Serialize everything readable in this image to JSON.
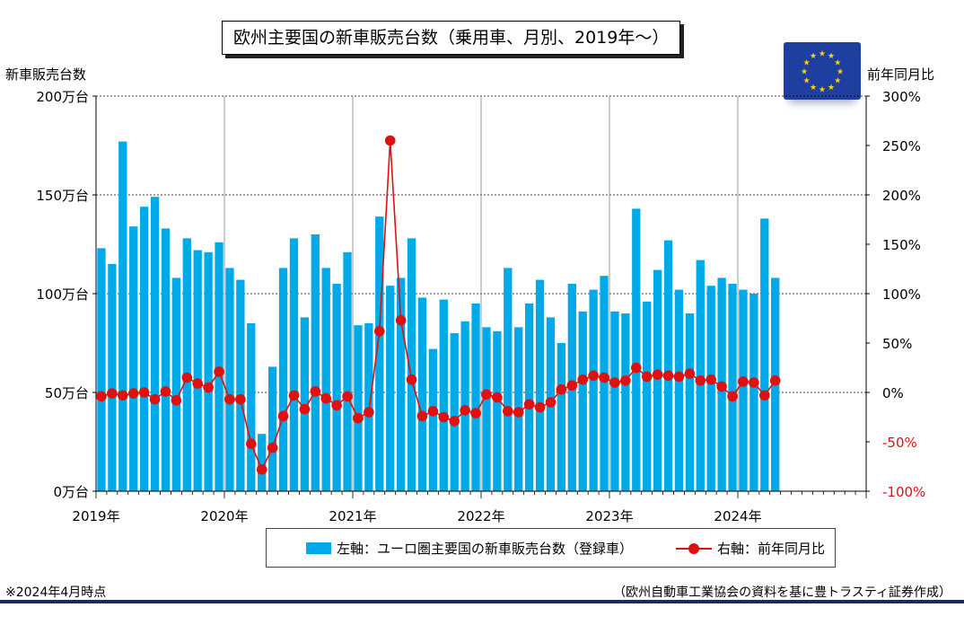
{
  "title": "欧州主要国の新車販売台数（乗用車、月別、2019年～）",
  "left_axis_title": "新車販売台数",
  "right_axis_title": "前年同月比",
  "legend": {
    "bar_label": "左軸：ユーロ圏主要国の新車販売台数（登録車）",
    "line_label": "右軸：前年同月比"
  },
  "note": "※2024年4月時点",
  "source": "（欧州自動車工業協会の資料を基に豊トラスティ証券作成）",
  "colors": {
    "bar": "#00a9e8",
    "line": "#e01010",
    "negative_tick": "#e01010",
    "rule": "#1b2a5c",
    "flag": "#1f3fa0",
    "star": "#ffd400"
  },
  "icons": {
    "flag": "eu-flag-icon"
  },
  "chart_data": {
    "type": "bar",
    "left_axis": {
      "ylim": [
        0,
        200
      ],
      "ticks": [
        0,
        50,
        100,
        150,
        200
      ],
      "tick_labels": [
        "0万台",
        "50万台",
        "100万台",
        "150万台",
        "200万台"
      ]
    },
    "right_axis": {
      "ylim": [
        -100,
        300
      ],
      "ticks": [
        -100,
        -50,
        0,
        50,
        100,
        150,
        200,
        250,
        300
      ],
      "tick_labels": [
        "-100%",
        "-50%",
        "0%",
        "50%",
        "100%",
        "150%",
        "200%",
        "250%",
        "300%"
      ]
    },
    "x_labels": [
      "2019年",
      "2020年",
      "2021年",
      "2022年",
      "2023年",
      "2024年"
    ],
    "x_slots": 72,
    "grid": true,
    "legend_position": "bottom",
    "series": [
      {
        "name": "左軸：ユーロ圏主要国の新車販売台数（登録車）",
        "type": "bar",
        "axis": "left",
        "values": [
          123,
          115,
          177,
          134,
          144,
          149,
          133,
          108,
          128,
          122,
          121,
          126,
          113,
          107,
          85,
          29,
          63,
          113,
          128,
          88,
          130,
          113,
          105,
          121,
          84,
          85,
          139,
          104,
          108,
          128,
          98,
          72,
          97,
          80,
          86,
          95,
          83,
          81,
          113,
          83,
          95,
          107,
          88,
          75,
          105,
          91,
          102,
          109,
          91,
          90,
          143,
          96,
          112,
          127,
          102,
          90,
          117,
          104,
          108,
          105,
          102,
          100,
          138,
          108
        ]
      },
      {
        "name": "右軸：前年同月比",
        "type": "line",
        "axis": "right",
        "values": [
          -4,
          -1,
          -3,
          -1,
          0,
          -7,
          1,
          -8,
          15,
          9,
          5,
          21,
          -7,
          -7,
          -52,
          -78,
          -56,
          -24,
          -3,
          -17,
          1,
          -6,
          -13,
          -4,
          -26,
          -20,
          62,
          255,
          73,
          13,
          -24,
          -19,
          -25,
          -29,
          -18,
          -21,
          -2,
          -5,
          -19,
          -20,
          -12,
          -15,
          -10,
          3,
          7,
          13,
          17,
          15,
          10,
          12,
          25,
          16,
          18,
          17,
          16,
          19,
          12,
          13,
          6,
          -4,
          11,
          10,
          -3,
          12
        ]
      }
    ]
  }
}
